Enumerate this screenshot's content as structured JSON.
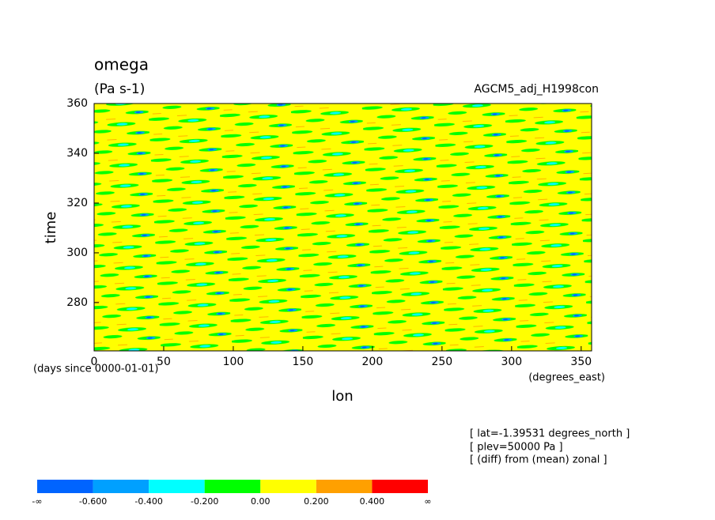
{
  "chart_data": {
    "type": "heatmap",
    "title": "omega",
    "subtitle": "(Pa s-1)",
    "run_label": "AGCM5_adj_H1998con",
    "x_label": "lon",
    "x_units": "(degrees_east)",
    "y_label": "time",
    "y_units": "(days since 0000-01-01)",
    "xlim": [
      0,
      357.5
    ],
    "xticks": [
      0,
      50,
      100,
      150,
      200,
      250,
      300,
      350
    ],
    "ylim": [
      260.6,
      360
    ],
    "yticks": [
      280,
      300,
      320,
      340,
      360
    ],
    "notes": [
      "[ lat=-1.39531 degrees_north ]",
      "[ plev=50000 Pa ]",
      "[ (diff) from (mean) zonal ]"
    ],
    "colorbar_colors": [
      "#0064ff",
      "#00a0ff",
      "#00ffff",
      "#00ff00",
      "#ffff00",
      "#ffa000",
      "#ff0000"
    ],
    "colorbar_ticks": [
      "-∞",
      {
        "value": -0.6,
        "label": "-0.600"
      },
      {
        "value": -0.4,
        "label": "-0.400"
      },
      {
        "value": -0.2,
        "label": "-0.200"
      },
      {
        "value": 0,
        "label": "0.00"
      },
      {
        "value": 0.2,
        "label": "0.200"
      },
      {
        "value": 0.4,
        "label": "0.400"
      },
      "∞"
    ]
  }
}
